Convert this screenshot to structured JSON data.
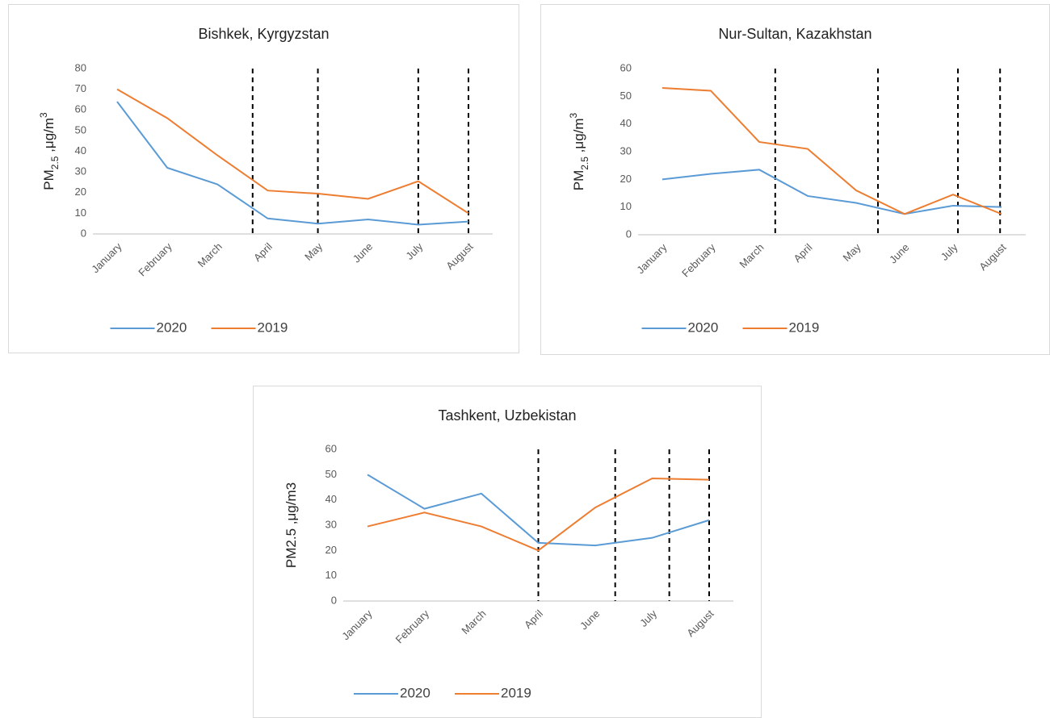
{
  "chart_data": [
    {
      "type": "line",
      "title": "Bishkek, Kyrgyzstan",
      "ylabel": {
        "main": "PM",
        "sub": "2.5",
        "rest": " ,μg/m",
        "sup": "3"
      },
      "categories": [
        "January",
        "February",
        "March",
        "April",
        "May",
        "June",
        "July",
        "August"
      ],
      "series": [
        {
          "name": "2020",
          "color": "#5b9bd5",
          "values": [
            64,
            32,
            24,
            7.5,
            5,
            7,
            4.5,
            6
          ]
        },
        {
          "name": "2019",
          "color": "#ed7d31",
          "values": [
            70,
            56,
            38,
            21,
            19.5,
            17,
            25.5,
            10
          ]
        }
      ],
      "ylim": [
        0,
        80
      ],
      "yticks": [
        0,
        10,
        20,
        30,
        40,
        50,
        60,
        70,
        80
      ],
      "legend": "bottom"
    },
    {
      "type": "line",
      "title": "Nur-Sultan, Kazakhstan",
      "ylabel": {
        "main": "PM",
        "sub": "2.5",
        "rest": " ,μg/m",
        "sup": "3"
      },
      "categories": [
        "January",
        "February",
        "March",
        "April",
        "May",
        "June",
        "July",
        "August"
      ],
      "series": [
        {
          "name": "2020",
          "color": "#5b9bd5",
          "values": [
            20,
            22,
            23.5,
            14,
            11.5,
            7.5,
            10.5,
            10
          ]
        },
        {
          "name": "2019",
          "color": "#ed7d31",
          "values": [
            53,
            52,
            33.5,
            31,
            16,
            7.5,
            14.5,
            7.5
          ]
        }
      ],
      "ylim": [
        0,
        60
      ],
      "yticks": [
        0,
        10,
        20,
        30,
        40,
        50,
        60
      ],
      "legend": "bottom"
    },
    {
      "type": "line",
      "title": "Tashkent, Uzbekistan",
      "ylabel": {
        "main": "PM2.5 ,μg/m3"
      },
      "categories": [
        "January",
        "February",
        "March",
        "April",
        "June",
        "July",
        "August"
      ],
      "series": [
        {
          "name": "2020",
          "color": "#5b9bd5",
          "values": [
            50,
            36.5,
            42.5,
            23,
            22,
            25,
            32
          ]
        },
        {
          "name": "2019",
          "color": "#ed7d31",
          "values": [
            29.5,
            35,
            29.5,
            20,
            37,
            48.5,
            48
          ]
        }
      ],
      "ylim": [
        0,
        60
      ],
      "yticks": [
        0,
        10,
        20,
        30,
        40,
        50,
        60
      ],
      "legend": "bottom"
    }
  ]
}
